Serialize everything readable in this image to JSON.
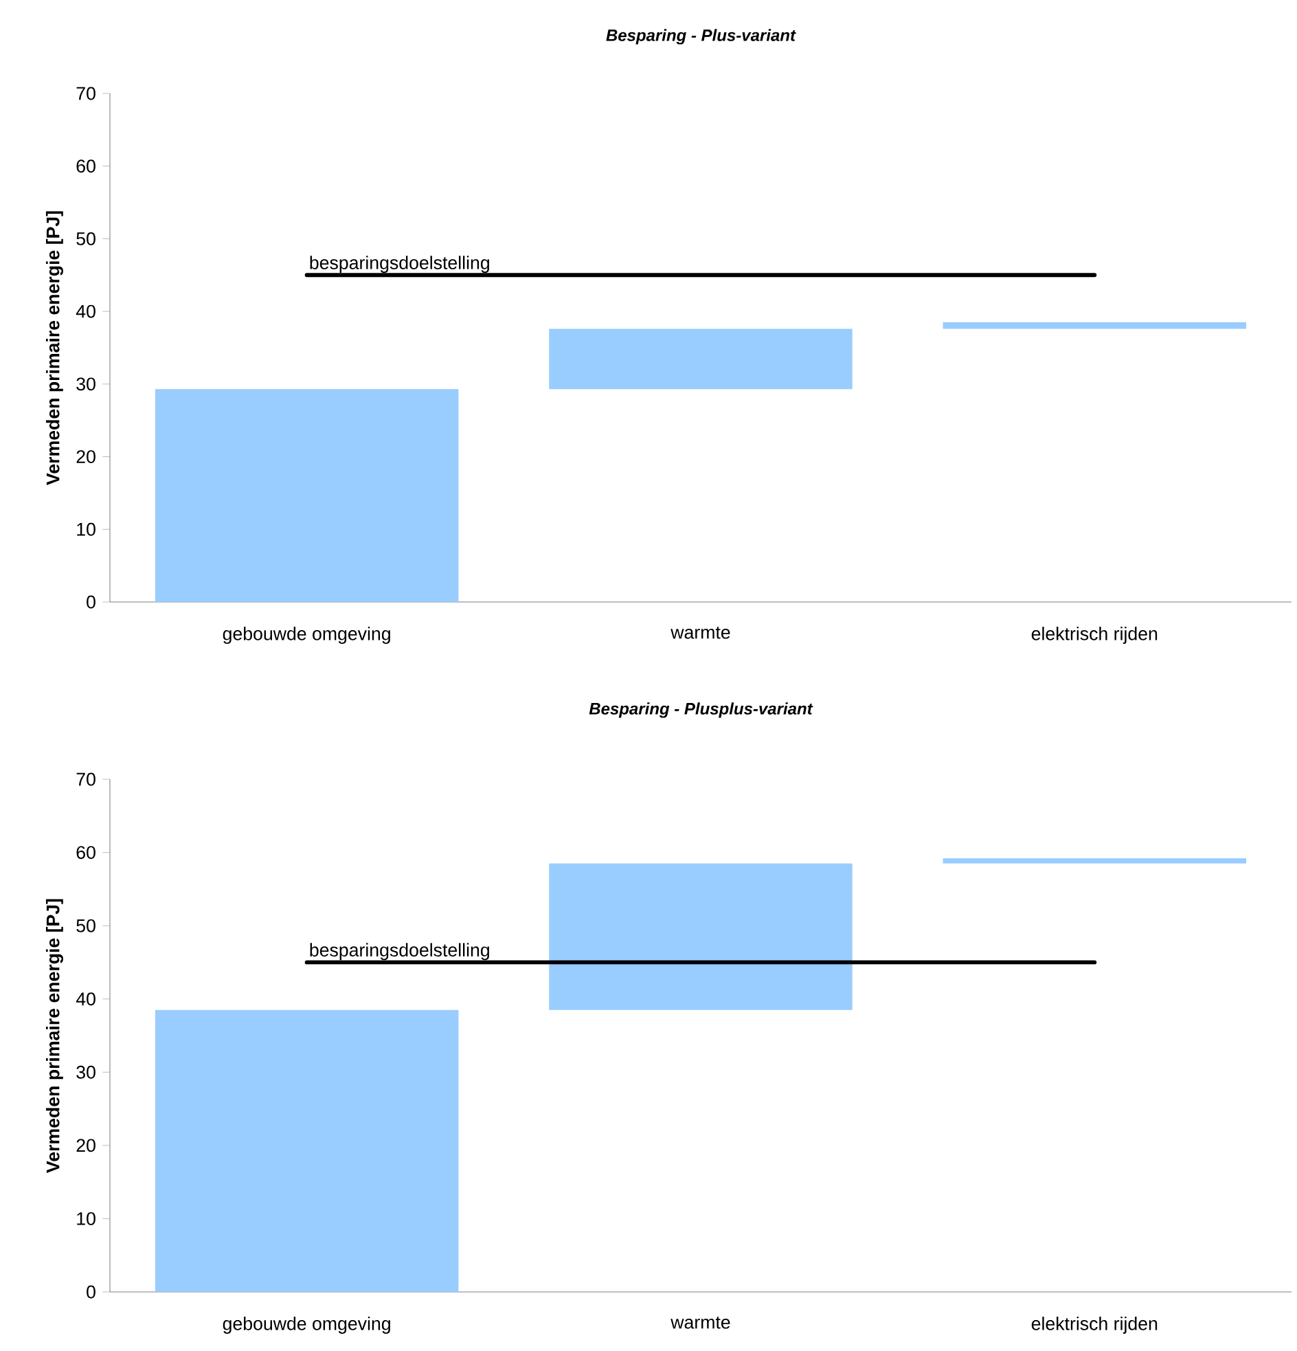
{
  "chart_data": [
    {
      "type": "bar",
      "title": "Besparing - Plus-variant",
      "ylabel": "Vermeden primaire energie [PJ]",
      "categories": [
        "gebouwde omgeving",
        "warmte",
        "elektrisch rijden"
      ],
      "values": [
        29.3,
        8.3,
        0.9
      ],
      "base": [
        0,
        29.3,
        37.6
      ],
      "color": "#99ccff",
      "ylim": [
        0,
        70
      ],
      "yticks": [
        0,
        10,
        20,
        30,
        40,
        50,
        60,
        70
      ],
      "ref_lines": [
        {
          "axis": "y",
          "value": 45,
          "label": "besparingsdoelstelling",
          "color": "#000000"
        }
      ]
    },
    {
      "type": "bar",
      "title": "Besparing - Plusplus-variant",
      "ylabel": "Vermeden primaire energie [PJ]",
      "categories": [
        "gebouwde omgeving",
        "warmte",
        "elektrisch rijden"
      ],
      "values": [
        38.5,
        20.0,
        0.7
      ],
      "base": [
        0,
        38.5,
        58.5
      ],
      "color": "#99ccff",
      "ylim": [
        0,
        70
      ],
      "yticks": [
        0,
        10,
        20,
        30,
        40,
        50,
        60,
        70
      ],
      "ref_lines": [
        {
          "axis": "y",
          "value": 45,
          "label": "besparingsdoelstelling",
          "color": "#000000"
        }
      ]
    }
  ]
}
